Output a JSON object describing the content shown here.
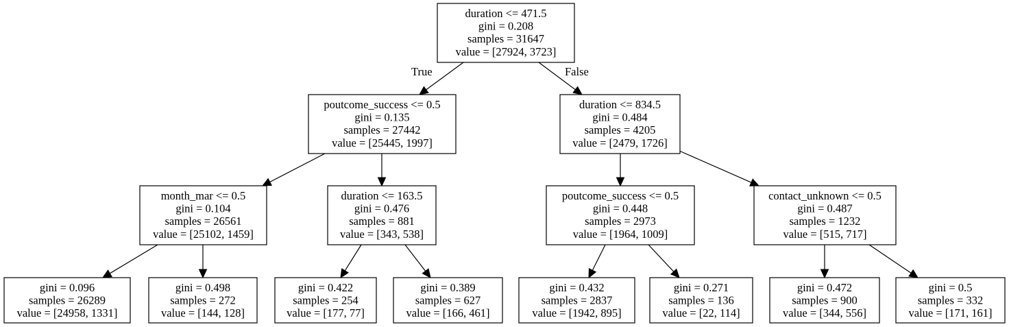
{
  "tree": {
    "nodes": [
      {
        "id": "n0",
        "lines": [
          "duration <= 471.5",
          "gini = 0.208",
          "samples = 31647",
          "value = [27924, 3723]"
        ]
      },
      {
        "id": "n1",
        "lines": [
          "poutcome_success <= 0.5",
          "gini = 0.135",
          "samples = 27442",
          "value = [25445, 1997]"
        ]
      },
      {
        "id": "n2",
        "lines": [
          "duration <= 834.5",
          "gini = 0.484",
          "samples = 4205",
          "value = [2479, 1726]"
        ]
      },
      {
        "id": "n3",
        "lines": [
          "month_mar <= 0.5",
          "gini = 0.104",
          "samples = 26561",
          "value = [25102, 1459]"
        ]
      },
      {
        "id": "n4",
        "lines": [
          "duration <= 163.5",
          "gini = 0.476",
          "samples = 881",
          "value = [343, 538]"
        ]
      },
      {
        "id": "n5",
        "lines": [
          "poutcome_success <= 0.5",
          "gini = 0.448",
          "samples = 2973",
          "value = [1964, 1009]"
        ]
      },
      {
        "id": "n6",
        "lines": [
          "contact_unknown <= 0.5",
          "gini = 0.487",
          "samples = 1232",
          "value = [515, 717]"
        ]
      },
      {
        "id": "n7",
        "lines": [
          "gini = 0.096",
          "samples = 26289",
          "value = [24958, 1331]"
        ]
      },
      {
        "id": "n8",
        "lines": [
          "gini = 0.498",
          "samples = 272",
          "value = [144, 128]"
        ]
      },
      {
        "id": "n9",
        "lines": [
          "gini = 0.422",
          "samples = 254",
          "value = [177, 77]"
        ]
      },
      {
        "id": "n10",
        "lines": [
          "gini = 0.389",
          "samples = 627",
          "value = [166, 461]"
        ]
      },
      {
        "id": "n11",
        "lines": [
          "gini = 0.432",
          "samples = 2837",
          "value = [1942, 895]"
        ]
      },
      {
        "id": "n12",
        "lines": [
          "gini = 0.271",
          "samples = 136",
          "value = [22, 114]"
        ]
      },
      {
        "id": "n13",
        "lines": [
          "gini = 0.472",
          "samples = 900",
          "value = [344, 556]"
        ]
      },
      {
        "id": "n14",
        "lines": [
          "gini = 0.5",
          "samples = 332",
          "value = [171, 161]"
        ]
      }
    ],
    "edges": [
      {
        "from": "n0",
        "to": "n1",
        "label": "True"
      },
      {
        "from": "n0",
        "to": "n2",
        "label": "False"
      },
      {
        "from": "n1",
        "to": "n3",
        "label": ""
      },
      {
        "from": "n1",
        "to": "n4",
        "label": ""
      },
      {
        "from": "n2",
        "to": "n5",
        "label": ""
      },
      {
        "from": "n2",
        "to": "n6",
        "label": ""
      },
      {
        "from": "n3",
        "to": "n7",
        "label": ""
      },
      {
        "from": "n3",
        "to": "n8",
        "label": ""
      },
      {
        "from": "n4",
        "to": "n9",
        "label": ""
      },
      {
        "from": "n4",
        "to": "n10",
        "label": ""
      },
      {
        "from": "n5",
        "to": "n11",
        "label": ""
      },
      {
        "from": "n5",
        "to": "n12",
        "label": ""
      },
      {
        "from": "n6",
        "to": "n13",
        "label": ""
      },
      {
        "from": "n6",
        "to": "n14",
        "label": ""
      }
    ]
  }
}
